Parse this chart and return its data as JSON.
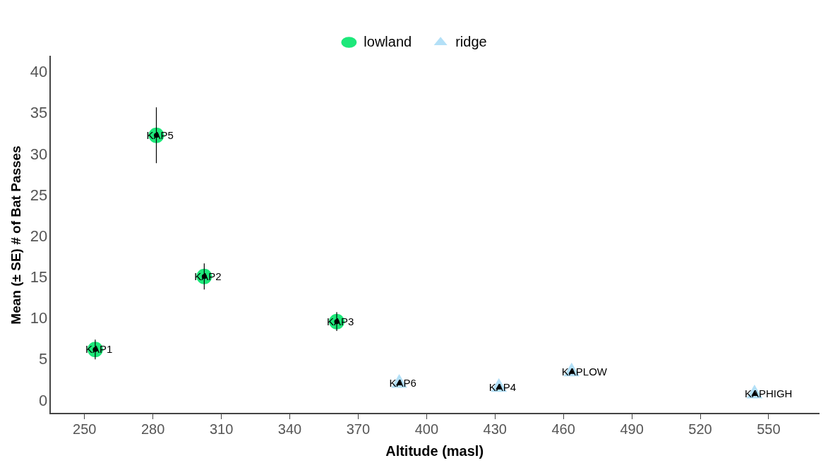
{
  "chart_data": {
    "type": "scatter",
    "xlabel": "Altitude (masl)",
    "ylabel": "Mean (± SE) # of Bat Passes",
    "xlim": [
      235,
      572
    ],
    "xticks": [
      250,
      280,
      310,
      340,
      370,
      400,
      430,
      460,
      490,
      520,
      550
    ],
    "ylim": [
      -1.5,
      42
    ],
    "yticks": [
      0,
      5,
      10,
      15,
      20,
      25,
      30,
      35,
      40
    ],
    "grid": false,
    "legend": "top",
    "series": [
      {
        "name": "lowland",
        "color": "#1de87a",
        "marker": "circle",
        "x": [
          254.7,
          281.5,
          302.5,
          360.6
        ],
        "values": [
          6.3,
          32.4,
          15.2,
          9.7
        ],
        "errors": [
          1.2,
          3.4,
          1.6,
          1.15
        ]
      },
      {
        "name": "ridge",
        "color": "#b3e0f7",
        "marker": "triangle",
        "x": [
          388,
          431.7,
          463.6,
          543.8
        ],
        "values": [
          2.2,
          1.7,
          3.6,
          0.9
        ]
      }
    ],
    "annotations": [
      {
        "text": "KAP1",
        "x": 254.7,
        "y": 6.3
      },
      {
        "text": "KAP5",
        "x": 281.5,
        "y": 32.4
      },
      {
        "text": "KAP2",
        "x": 302.5,
        "y": 15.2
      },
      {
        "text": "KAP3",
        "x": 360.6,
        "y": 9.7
      },
      {
        "text": "KAP6",
        "x": 388,
        "y": 2.2
      },
      {
        "text": "KAP4",
        "x": 431.7,
        "y": 1.7
      },
      {
        "text": "KAPLOW",
        "x": 463.6,
        "y": 3.6
      },
      {
        "text": "KAPHIGH",
        "x": 543.8,
        "y": 0.9
      }
    ]
  }
}
